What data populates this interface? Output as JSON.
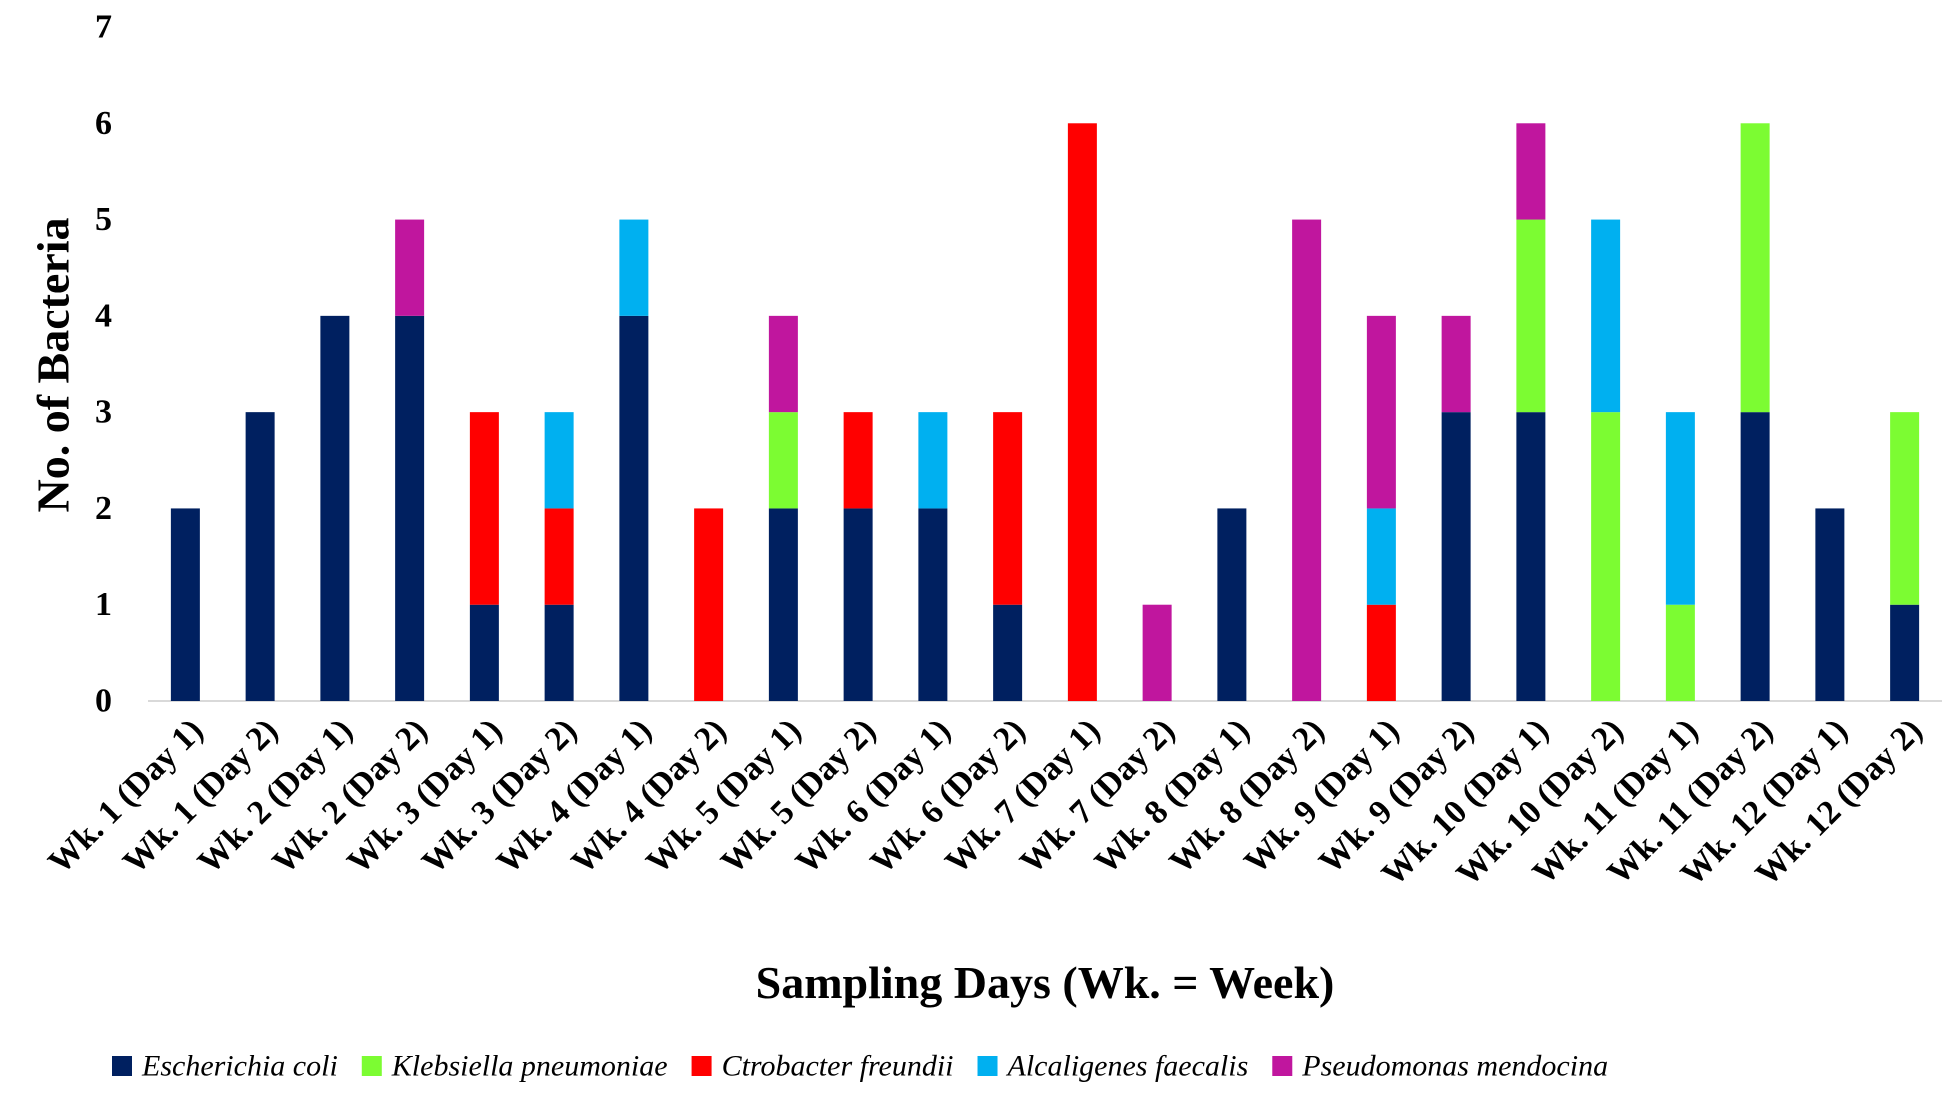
{
  "chart_data": {
    "type": "bar",
    "stacked": true,
    "title": "",
    "xlabel": "Sampling Days (Wk. = Week)",
    "ylabel": "No. of Bacteria",
    "ylim": [
      0,
      7
    ],
    "yticks": [
      "0",
      "1",
      "2",
      "3",
      "4",
      "5",
      "6",
      "7"
    ],
    "grid": false,
    "legend_position": "bottom",
    "categories": [
      "Wk. 1 (Day 1)",
      "Wk. 1 (Day 2)",
      "Wk. 2 (Day 1)",
      "Wk. 2 (Day 2)",
      "Wk. 3 (Day 1)",
      "Wk. 3 (Day 2)",
      "Wk. 4 (Day 1)",
      "Wk. 4 (Day 2)",
      "Wk. 5 (Day 1)",
      "Wk. 5 (Day 2)",
      "Wk. 6 (Day 1)",
      "Wk. 6 (Day 2)",
      "Wk. 7 (Day 1)",
      "Wk. 7 (Day 2)",
      "Wk. 8 (Day 1)",
      "Wk. 8 (Day 2)",
      "Wk. 9 (Day 1)",
      "Wk. 9 (Day 2)",
      "Wk. 10 (Day 1)",
      "Wk. 10 (Day 2)",
      "Wk. 11 (Day 1)",
      "Wk. 11 (Day 2)",
      "Wk. 12 (Day 1)",
      "Wk. 12 (Day 2)"
    ],
    "series": [
      {
        "name": "Escherichia coli",
        "color": "#002060",
        "values": [
          2,
          3,
          4,
          4,
          1,
          1,
          4,
          0,
          2,
          2,
          2,
          1,
          0,
          0,
          2,
          0,
          0,
          3,
          3,
          0,
          0,
          3,
          2,
          1
        ]
      },
      {
        "name": "Klebsiella pneumoniae",
        "color": "#7CFC32",
        "values": [
          0,
          0,
          0,
          0,
          0,
          0,
          0,
          0,
          1,
          0,
          0,
          0,
          0,
          0,
          0,
          0,
          0,
          0,
          2,
          3,
          1,
          3,
          0,
          2
        ]
      },
      {
        "name": "Ctrobacter freundii",
        "color": "#FF0000",
        "values": [
          0,
          0,
          0,
          0,
          2,
          1,
          0,
          2,
          0,
          1,
          0,
          2,
          6,
          0,
          0,
          0,
          1,
          0,
          0,
          0,
          0,
          0,
          0,
          0
        ]
      },
      {
        "name": "Alcaligenes faecalis",
        "color": "#00B0F0",
        "values": [
          0,
          0,
          0,
          0,
          0,
          1,
          1,
          0,
          0,
          0,
          1,
          0,
          0,
          0,
          0,
          0,
          1,
          0,
          0,
          2,
          2,
          0,
          0,
          0
        ]
      },
      {
        "name": "Pseudomonas mendocina",
        "color": "#C0169E",
        "values": [
          0,
          0,
          0,
          1,
          0,
          0,
          0,
          0,
          1,
          0,
          0,
          0,
          0,
          1,
          0,
          5,
          2,
          1,
          1,
          0,
          0,
          0,
          0,
          0
        ]
      }
    ]
  }
}
